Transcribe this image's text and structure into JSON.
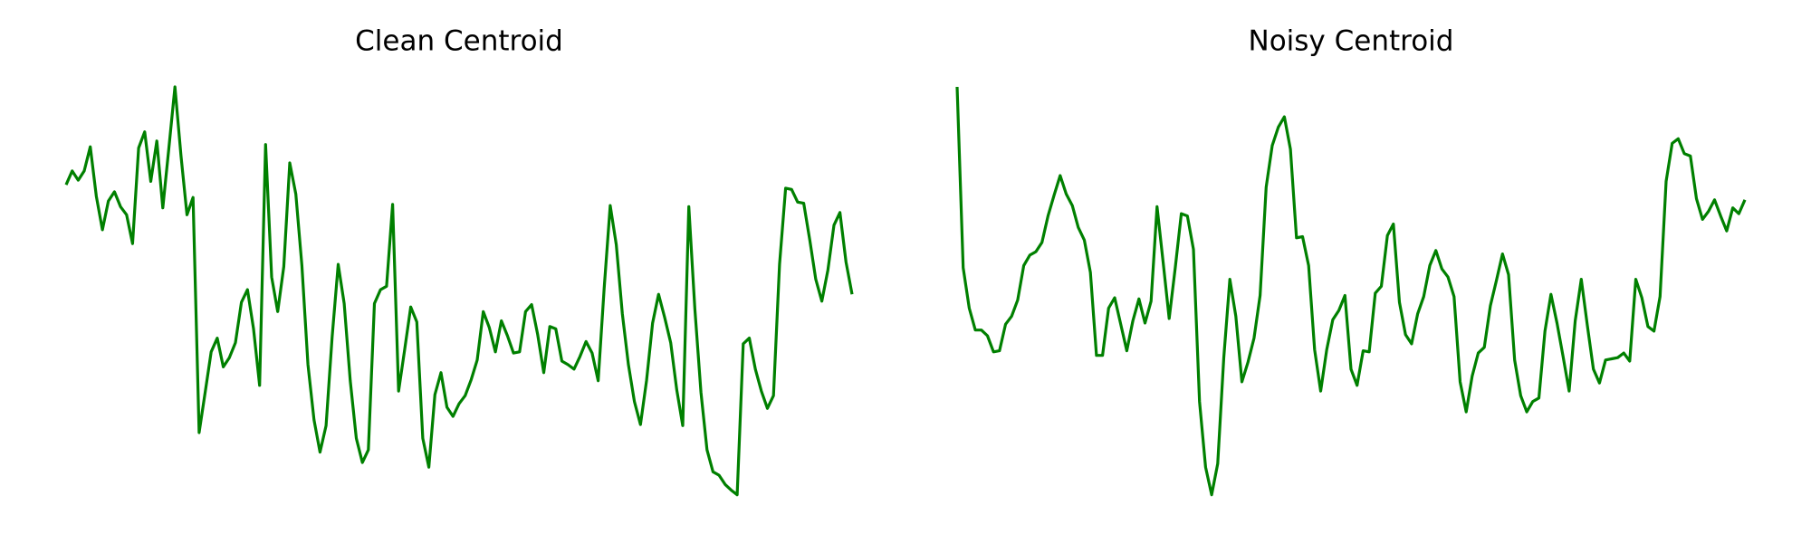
{
  "chart_data": [
    {
      "type": "line",
      "title": "Clean Centroid",
      "color": "#008000",
      "ylim": [
        0,
        355
      ],
      "values": [
        270,
        282,
        274,
        282,
        303,
        260,
        231,
        256,
        264,
        251,
        244,
        219,
        302,
        316,
        273,
        308,
        250,
        302,
        355,
        295,
        244,
        259,
        55,
        90,
        125,
        137,
        112,
        120,
        133,
        168,
        179,
        145,
        96,
        305,
        190,
        160,
        199,
        289,
        262,
        200,
        114,
        66,
        38,
        61,
        138,
        201,
        167,
        100,
        50,
        29,
        40,
        167,
        179,
        182,
        253,
        91,
        127,
        164,
        151,
        50,
        25,
        88,
        107,
        77,
        69,
        80,
        87,
        101,
        118,
        160,
        146,
        125,
        152,
        139,
        124,
        125,
        160,
        166,
        140,
        107,
        147,
        145,
        117,
        114,
        110,
        121,
        134,
        124,
        100,
        180,
        252,
        218,
        158,
        114,
        82,
        62,
        100,
        150,
        175,
        155,
        133,
        92,
        61,
        251,
        162,
        90,
        40,
        21,
        18,
        10,
        5,
        1,
        132,
        137,
        110,
        91,
        76,
        87,
        201,
        267,
        266,
        255,
        254,
        222,
        188,
        169,
        196,
        235,
        246,
        203,
        175
      ]
    },
    {
      "type": "line",
      "title": "Noisy Centroid",
      "color": "#008000",
      "ylim": [
        0,
        355
      ],
      "values": [
        355,
        198,
        163,
        144,
        144,
        139,
        125,
        126,
        149,
        156,
        170,
        200,
        209,
        212,
        220,
        243,
        261,
        278,
        262,
        252,
        233,
        222,
        194,
        122,
        122,
        163,
        172,
        149,
        126,
        152,
        171,
        150,
        169,
        251,
        203,
        154,
        198,
        245,
        243,
        214,
        82,
        25,
        1,
        28,
        120,
        188,
        156,
        99,
        116,
        137,
        174,
        268,
        304,
        320,
        329,
        301,
        224,
        225,
        200,
        127,
        91,
        127,
        153,
        161,
        174,
        110,
        96,
        126,
        125,
        176,
        182,
        226,
        236,
        168,
        140,
        132,
        158,
        173,
        200,
        213,
        197,
        190,
        173,
        99,
        73,
        104,
        124,
        129,
        165,
        187,
        210,
        192,
        118,
        87,
        73,
        82,
        85,
        143,
        175,
        150,
        121,
        91,
        152,
        188,
        148,
        110,
        98,
        118,
        119,
        120,
        124,
        117,
        188,
        172,
        147,
        143,
        173,
        273,
        306,
        310,
        297,
        295,
        258,
        240,
        247,
        257,
        243,
        230,
        250,
        245,
        257
      ]
    }
  ]
}
